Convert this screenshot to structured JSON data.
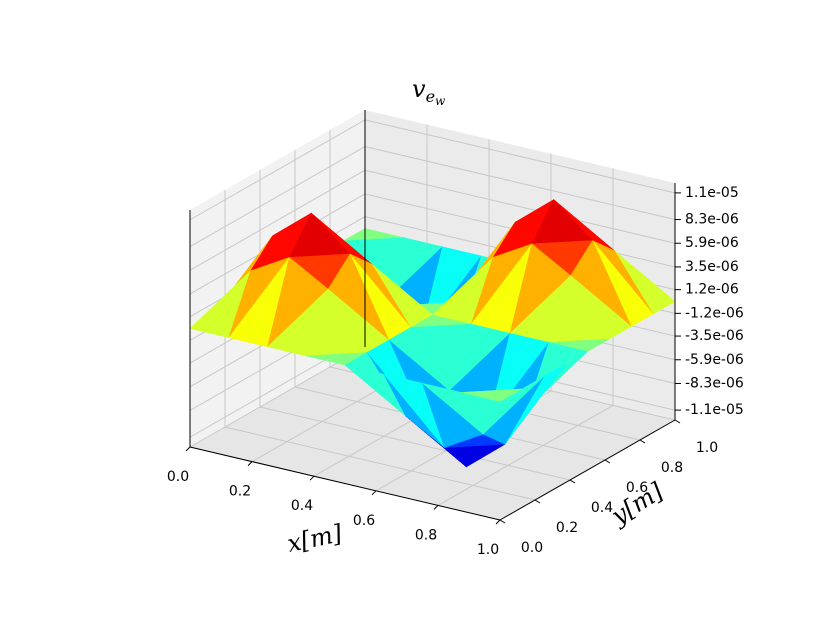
{
  "chart_data": {
    "type": "surface",
    "title": "v",
    "title_subscript": "e",
    "title_subsubscript": "w",
    "xlabel": "x[m]",
    "ylabel": "y[m]",
    "x": [
      0,
      0.125,
      0.25,
      0.375,
      0.5,
      0.625,
      0.75,
      0.875,
      1
    ],
    "y": [
      0,
      0.125,
      0.25,
      0.375,
      0.5,
      0.625,
      0.75,
      0.875,
      1
    ],
    "z": [
      [
        0,
        0,
        0,
        0,
        0,
        0,
        0,
        0,
        0
      ],
      [
        0,
        5.5e-06,
        7.78e-06,
        5.5e-06,
        0,
        -5.5e-06,
        -7.78e-06,
        -5.5e-06,
        0
      ],
      [
        0,
        7.78e-06,
        1.1e-05,
        7.78e-06,
        0,
        -7.78e-06,
        -1.1e-05,
        -7.78e-06,
        0
      ],
      [
        0,
        5.5e-06,
        7.78e-06,
        5.5e-06,
        0,
        -5.5e-06,
        -7.78e-06,
        -5.5e-06,
        0
      ],
      [
        0,
        0,
        0,
        0,
        0,
        0,
        0,
        0,
        0
      ],
      [
        0,
        -5.5e-06,
        -7.78e-06,
        -5.5e-06,
        0,
        5.5e-06,
        7.78e-06,
        5.5e-06,
        0
      ],
      [
        0,
        -7.78e-06,
        -1.1e-05,
        -7.78e-06,
        0,
        7.78e-06,
        1.1e-05,
        7.78e-06,
        0
      ],
      [
        0,
        -5.5e-06,
        -7.78e-06,
        -5.5e-06,
        0,
        5.5e-06,
        7.78e-06,
        5.5e-06,
        0
      ],
      [
        0,
        0,
        0,
        0,
        0,
        0,
        0,
        0,
        0
      ]
    ],
    "colormap": "jet",
    "xlim": [
      0,
      1
    ],
    "ylim": [
      0,
      1
    ],
    "zlim": [
      -1.2e-05,
      1.2e-05
    ],
    "xticks": [
      {
        "value": 0,
        "label": "0.0"
      },
      0.2,
      0.4,
      0.6,
      0.8,
      {
        "value": 1,
        "label": "1.0"
      }
    ],
    "yticks": [
      {
        "value": 0,
        "label": "0.0"
      },
      0.2,
      0.4,
      0.6,
      0.8,
      {
        "value": 1,
        "label": "1.0"
      }
    ],
    "zticks": [
      {
        "value": -1.1e-05,
        "label": "-1.1e-05"
      },
      {
        "value": -8.3e-06,
        "label": "-8.3e-06"
      },
      {
        "value": -5.9e-06,
        "label": "-5.9e-06"
      },
      {
        "value": -3.5e-06,
        "label": "-3.5e-06"
      },
      {
        "value": -1.2e-06,
        "label": "-1.2e-06"
      },
      {
        "value": 1.2e-06,
        "label": "1.2e-06"
      },
      {
        "value": 3.5e-06,
        "label": "3.5e-06"
      },
      {
        "value": 5.9e-06,
        "label": "5.9e-06"
      },
      {
        "value": 8.3e-06,
        "label": "8.3e-06"
      },
      {
        "value": 1.1e-05,
        "label": "1.1e-05"
      }
    ],
    "grid": true
  }
}
